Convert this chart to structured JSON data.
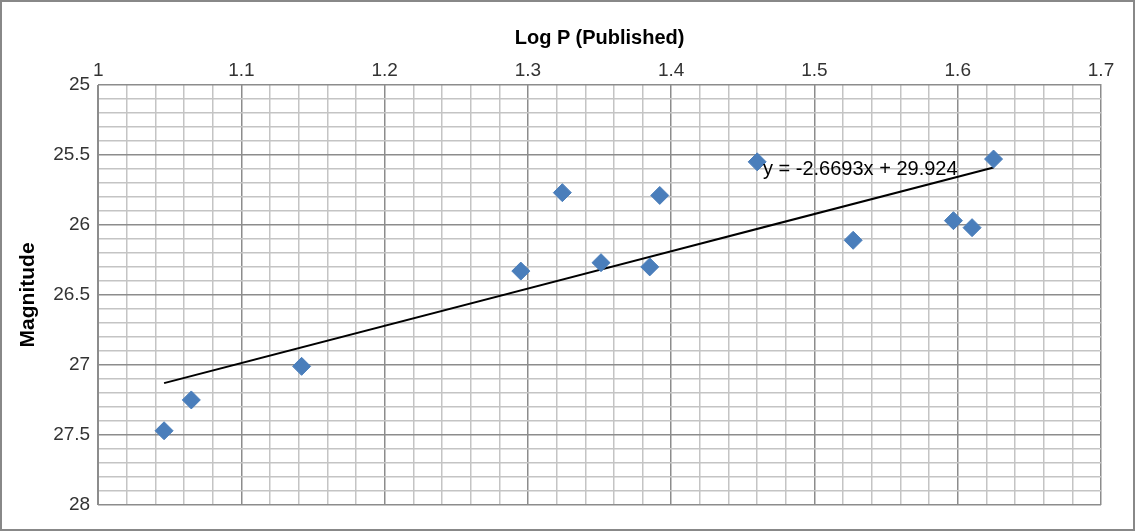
{
  "chart_data": {
    "type": "scatter",
    "xlabel": "Log P (Published)",
    "ylabel": "Magnitude",
    "xlim": [
      1,
      1.7
    ],
    "xticks": [
      1,
      {
        "value": 1.02,
        "label": null
      },
      {
        "value": 1.04,
        "label": null
      },
      {
        "value": 1.06,
        "label": null
      },
      {
        "value": 1.08,
        "label": null
      },
      1.1,
      {
        "value": 1.12,
        "label": null
      },
      {
        "value": 1.14,
        "label": null
      },
      {
        "value": 1.16,
        "label": null
      },
      {
        "value": 1.18,
        "label": null
      },
      1.2,
      {
        "value": 1.22,
        "label": null
      },
      {
        "value": 1.24,
        "label": null
      },
      {
        "value": 1.26,
        "label": null
      },
      {
        "value": 1.28,
        "label": null
      },
      1.3,
      {
        "value": 1.32,
        "label": null
      },
      {
        "value": 1.34,
        "label": null
      },
      {
        "value": 1.36,
        "label": null
      },
      {
        "value": 1.38,
        "label": null
      },
      1.4,
      {
        "value": 1.42,
        "label": null
      },
      {
        "value": 1.44,
        "label": null
      },
      {
        "value": 1.46,
        "label": null
      },
      {
        "value": 1.48,
        "label": null
      },
      1.5,
      {
        "value": 1.52,
        "label": null
      },
      {
        "value": 1.54,
        "label": null
      },
      {
        "value": 1.56,
        "label": null
      },
      {
        "value": 1.58,
        "label": null
      },
      1.6,
      {
        "value": 1.62,
        "label": null
      },
      {
        "value": 1.64,
        "label": null
      },
      {
        "value": 1.66,
        "label": null
      },
      {
        "value": 1.68,
        "label": null
      },
      1.7
    ],
    "ylim": [
      28,
      25
    ],
    "yticks": [
      25,
      {
        "value": 25.1,
        "label": null
      },
      {
        "value": 25.2,
        "label": null
      },
      {
        "value": 25.3,
        "label": null
      },
      {
        "value": 25.4,
        "label": null
      },
      25.5,
      {
        "value": 25.6,
        "label": null
      },
      {
        "value": 25.7,
        "label": null
      },
      {
        "value": 25.8,
        "label": null
      },
      {
        "value": 25.9,
        "label": null
      },
      26,
      {
        "value": 26.1,
        "label": null
      },
      {
        "value": 26.2,
        "label": null
      },
      {
        "value": 26.3,
        "label": null
      },
      {
        "value": 26.4,
        "label": null
      },
      26.5,
      {
        "value": 26.6,
        "label": null
      },
      {
        "value": 26.7,
        "label": null
      },
      {
        "value": 26.8,
        "label": null
      },
      {
        "value": 26.9,
        "label": null
      },
      27,
      {
        "value": 27.1,
        "label": null
      },
      {
        "value": 27.2,
        "label": null
      },
      {
        "value": 27.3,
        "label": null
      },
      {
        "value": 27.4,
        "label": null
      },
      27.5,
      {
        "value": 27.6,
        "label": null
      },
      {
        "value": 27.7,
        "label": null
      },
      {
        "value": 27.8,
        "label": null
      },
      {
        "value": 27.9,
        "label": null
      },
      28
    ],
    "grid": true,
    "marker": "diamond",
    "series": [
      {
        "color": "#4a7ebb",
        "x": [
          1.046,
          1.065,
          1.142,
          1.295,
          1.324,
          1.351,
          1.385,
          1.392,
          1.46,
          1.527,
          1.597,
          1.61,
          1.625
        ],
        "values": [
          27.47,
          27.25,
          27.01,
          26.33,
          25.77,
          26.27,
          26.3,
          25.79,
          25.55,
          26.11,
          25.97,
          26.02,
          25.53
        ]
      },
      {
        "type": "line",
        "color": "#000000",
        "marker": "none",
        "x": [
          1.046,
          1.625
        ],
        "values": [
          27.13,
          25.59
        ]
      }
    ],
    "annotations": [
      "y = -2.6693x + 29.924"
    ]
  }
}
